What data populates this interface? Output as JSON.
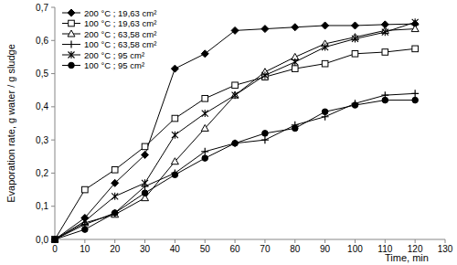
{
  "chart_data": {
    "type": "line",
    "x_label": "Time, min",
    "y_label": "Evaporation rate, g water / g sludge",
    "x": [
      0,
      10,
      20,
      30,
      40,
      50,
      60,
      70,
      80,
      90,
      100,
      110,
      120
    ],
    "xlim": [
      0,
      130
    ],
    "xticks": [
      0,
      10,
      20,
      30,
      40,
      50,
      60,
      70,
      80,
      90,
      100,
      110,
      120,
      130
    ],
    "ylim": [
      0,
      0.7
    ],
    "yticks": [
      {
        "value": 0,
        "label": "0,0"
      },
      {
        "value": 0.1,
        "label": "0,1"
      },
      {
        "value": 0.2,
        "label": "0,2"
      },
      {
        "value": 0.3,
        "label": "0,3"
      },
      {
        "value": 0.4,
        "label": "0,4"
      },
      {
        "value": 0.5,
        "label": "0,5"
      },
      {
        "value": 0.6,
        "label": "0,6"
      },
      {
        "value": 0.7,
        "label": "0,7"
      }
    ],
    "grid": false,
    "legend": "top-left",
    "series": [
      {
        "name": "200 °C ; 19,63 cm²",
        "color": "#000000",
        "marker": "diamond",
        "values": [
          0,
          0.065,
          0.17,
          0.255,
          0.515,
          0.56,
          0.63,
          0.635,
          0.64,
          0.645,
          0.645,
          0.648,
          0.65
        ]
      },
      {
        "name": "100 °C ; 19,63 cm²",
        "color": "#000000",
        "marker": "square",
        "values": [
          0,
          0.15,
          0.21,
          0.28,
          0.365,
          0.425,
          0.465,
          0.49,
          0.515,
          0.53,
          0.56,
          0.565,
          0.575
        ]
      },
      {
        "name": "200 °C ; 63,58 cm²",
        "color": "#000000",
        "marker": "triangle",
        "values": [
          0,
          0.05,
          0.075,
          0.125,
          0.235,
          0.335,
          0.435,
          0.505,
          0.55,
          0.59,
          0.61,
          0.63,
          0.635
        ]
      },
      {
        "name": "100 °C ; 63,58 cm²",
        "color": "#000000",
        "marker": "plus",
        "values": [
          0,
          0.045,
          0.08,
          0.16,
          0.2,
          0.265,
          0.29,
          0.3,
          0.345,
          0.37,
          0.41,
          0.435,
          0.44
        ]
      },
      {
        "name": "200 °C ; 95 cm²",
        "color": "#000000",
        "marker": "star",
        "values": [
          0,
          0.055,
          0.13,
          0.17,
          0.315,
          0.38,
          0.435,
          0.495,
          0.535,
          0.58,
          0.605,
          0.625,
          0.655
        ]
      },
      {
        "name": "100 °C ; 95 cm²",
        "color": "#000000",
        "marker": "circle",
        "values": [
          0,
          0.03,
          0.08,
          0.14,
          0.195,
          0.245,
          0.29,
          0.32,
          0.335,
          0.385,
          0.405,
          0.42,
          0.42
        ]
      }
    ]
  }
}
